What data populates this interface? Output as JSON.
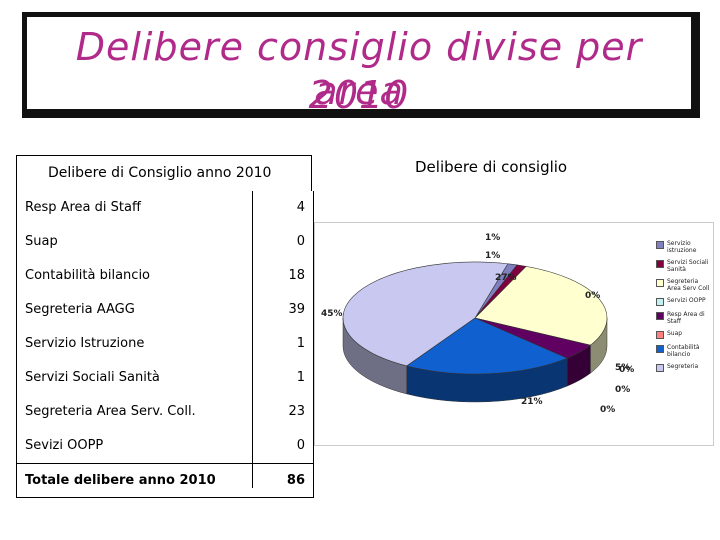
{
  "title": {
    "line1": "Delibere consiglio divise per area",
    "line2": "2010"
  },
  "table": {
    "title": "Delibere di Consiglio anno 2010",
    "rows": [
      {
        "label": "Resp Area di Staff",
        "value": "4"
      },
      {
        "label": "Suap",
        "value": "0"
      },
      {
        "label": "Contabilità bilancio",
        "value": "18"
      },
      {
        "label": "Segreteria AAGG",
        "value": "39"
      },
      {
        "label": "Servizio Istruzione",
        "value": "1"
      },
      {
        "label": "Servizi Sociali Sanità",
        "value": "1"
      },
      {
        "label": "Segreteria Area Serv. Coll.",
        "value": "23"
      },
      {
        "label": "Sevizi OOPP",
        "value": "0"
      }
    ],
    "total": {
      "label": "Totale delibere anno 2010",
      "value": "86"
    }
  },
  "chart_data": {
    "type": "pie",
    "title": "Delibere di consiglio",
    "slices": [
      {
        "label": "Servizio istruzione",
        "value": 1,
        "pct_label": "1%",
        "color": "#8080c0"
      },
      {
        "label": "Servizi Sociali Sanità",
        "value": 1,
        "pct_label": "1%",
        "color": "#800040"
      },
      {
        "label": "Segreteria Area Serv Coll",
        "value": 23,
        "pct_label": "27%",
        "color": "#ffffd0"
      },
      {
        "label": "Servizi OOPP",
        "value": 0,
        "pct_label": "0%",
        "color": "#c0f0f0"
      },
      {
        "label": "Resp Area di Staff",
        "value": 4,
        "pct_label": "5%",
        "color": "#600060"
      },
      {
        "label": "Suap",
        "value": 0,
        "pct_label": "0%",
        "color": "#ff8080"
      },
      {
        "label": "Contabilità bilancio",
        "value": 18,
        "pct_label": "21%",
        "color": "#1060d0"
      },
      {
        "label": "Segreteria",
        "value": 39,
        "pct_label": "45%",
        "color": "#c8c8f0"
      }
    ],
    "extra_labels": [
      "0%",
      "0%"
    ]
  }
}
